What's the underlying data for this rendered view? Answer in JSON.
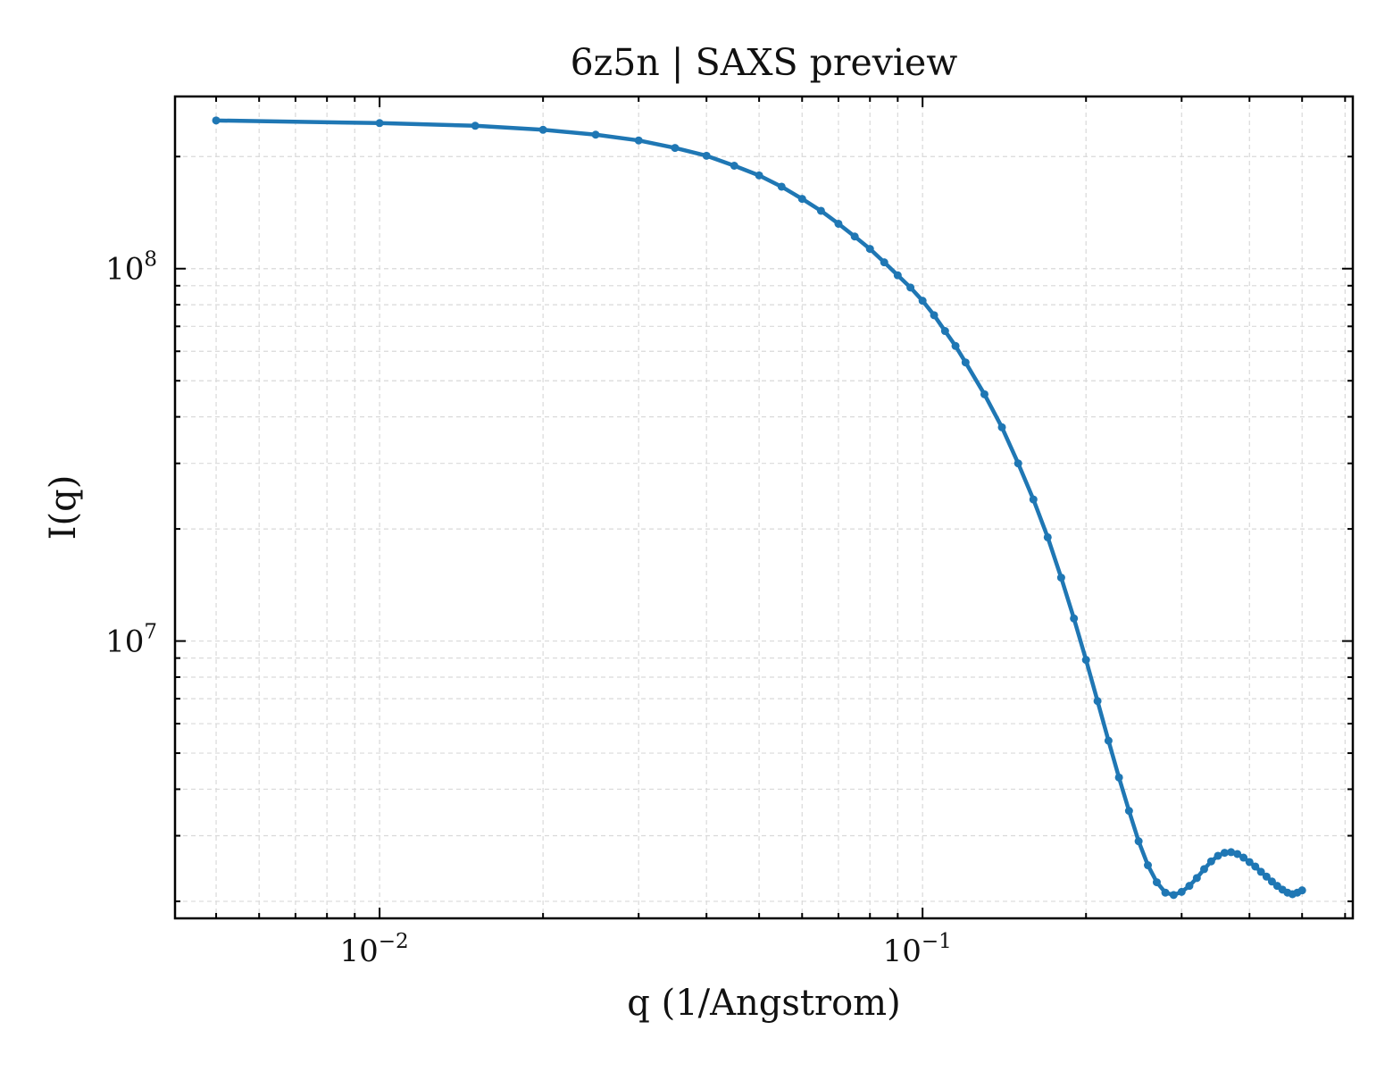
{
  "chart_data": {
    "type": "line",
    "title": "6z5n | SAXS preview",
    "xlabel": "q (1/Angstrom)",
    "ylabel": "I(q)",
    "xscale": "log",
    "yscale": "log",
    "xlim": [
      0.0042,
      0.62
    ],
    "ylim": [
      1800000,
      290000000
    ],
    "x_ticks": [
      {
        "value": 0.01,
        "base": "10",
        "exp": "−2"
      },
      {
        "value": 0.1,
        "base": "10",
        "exp": "−1"
      }
    ],
    "y_ticks": [
      {
        "value": 10000000,
        "base": "10",
        "exp": "7"
      },
      {
        "value": 100000000,
        "base": "10",
        "exp": "8"
      }
    ],
    "grid": true,
    "legend": "none",
    "colors": {
      "series": "#1f77b4",
      "grid": "#d9d9d9",
      "axes": "#000000"
    },
    "series": [
      {
        "x": [
          0.005,
          0.01,
          0.015,
          0.02,
          0.025,
          0.03,
          0.035,
          0.04,
          0.045,
          0.05,
          0.055,
          0.06,
          0.065,
          0.07,
          0.075,
          0.08,
          0.085,
          0.09,
          0.095,
          0.1,
          0.105,
          0.11,
          0.115,
          0.12,
          0.13,
          0.14,
          0.15,
          0.16,
          0.17,
          0.18,
          0.19,
          0.2,
          0.21,
          0.22,
          0.23,
          0.24,
          0.25,
          0.26,
          0.27,
          0.28,
          0.29,
          0.3,
          0.31,
          0.32,
          0.33,
          0.34,
          0.35,
          0.36,
          0.37,
          0.38,
          0.39,
          0.4,
          0.41,
          0.42,
          0.43,
          0.44,
          0.45,
          0.46,
          0.47,
          0.48,
          0.49,
          0.5
        ],
        "y": [
          250000000,
          246000000,
          242000000,
          236000000,
          229000000,
          221000000,
          211000000,
          201000000,
          189000000,
          178000000,
          166000000,
          154000000,
          143000000,
          132000000,
          122000000,
          113000000,
          104000000,
          96000000,
          89000000,
          82000000,
          75000000,
          68000000,
          62000000,
          56000000,
          46000000,
          37500000,
          30000000,
          24000000,
          19000000,
          14800000,
          11500000,
          8900000,
          6900000,
          5400000,
          4300000,
          3500000,
          2900000,
          2500000,
          2250000,
          2110000,
          2080000,
          2120000,
          2200000,
          2310000,
          2440000,
          2560000,
          2650000,
          2700000,
          2710000,
          2680000,
          2620000,
          2550000,
          2480000,
          2400000,
          2330000,
          2260000,
          2200000,
          2150000,
          2110000,
          2090000,
          2110000,
          2140000
        ]
      }
    ]
  }
}
